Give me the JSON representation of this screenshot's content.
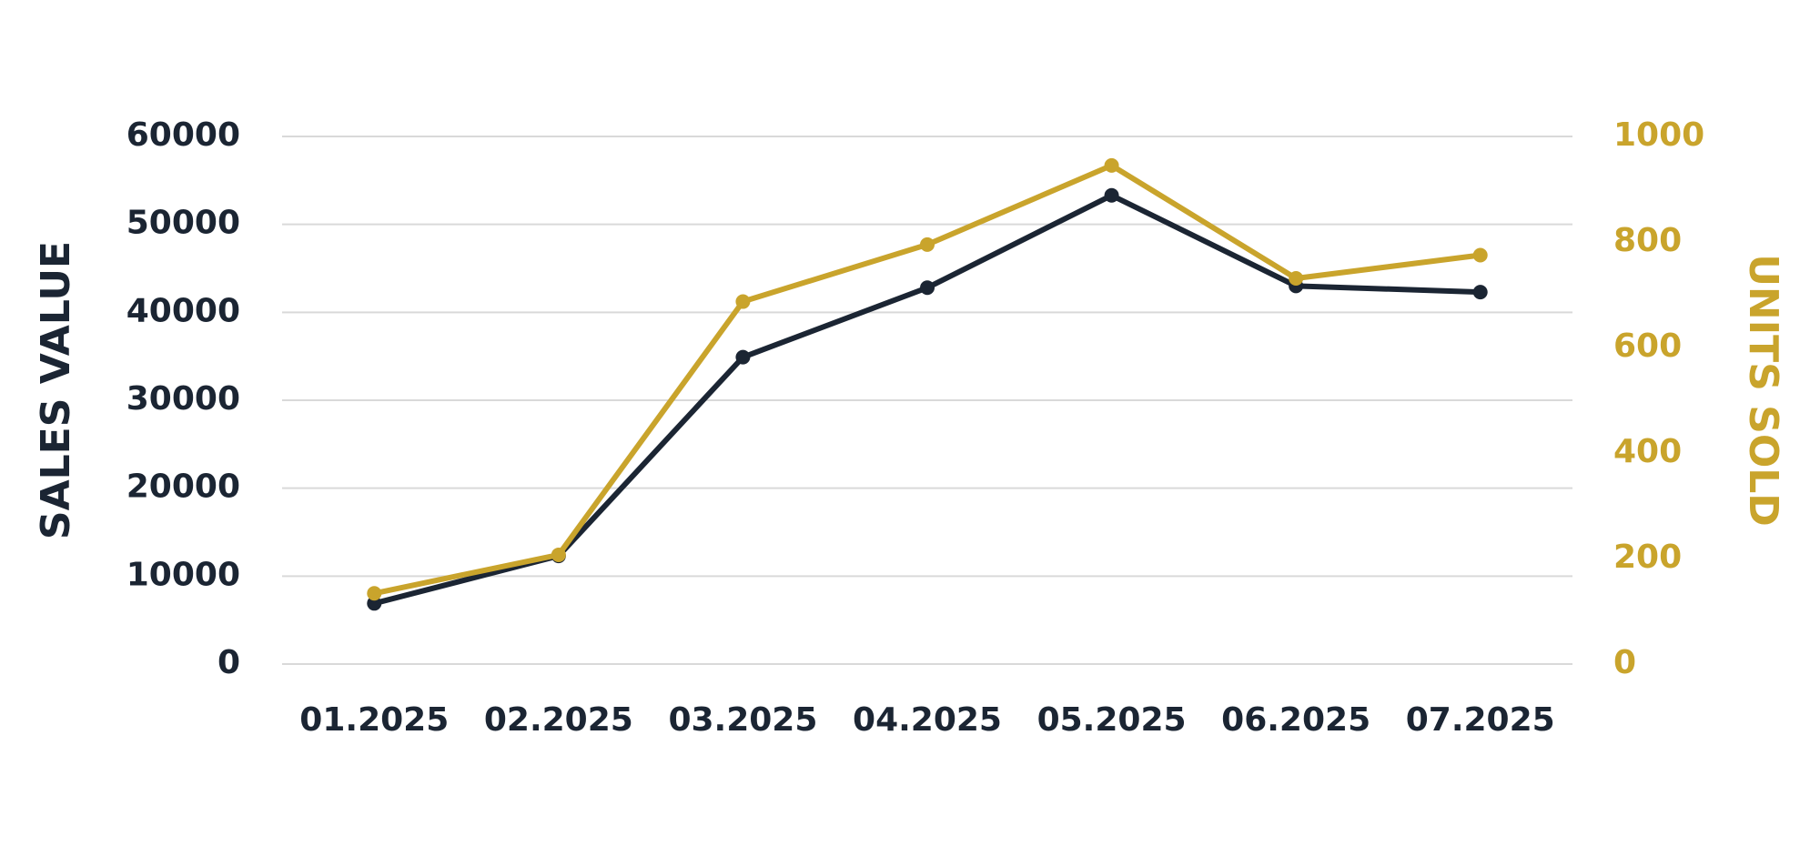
{
  "chart_data": {
    "type": "line",
    "ylabel": "SALES VALUE",
    "y2label": "UNITS SOLD",
    "categories": [
      "01.2025",
      "02.2025",
      "03.2025",
      "04.2025",
      "05.2025",
      "06.2025",
      "07.2025"
    ],
    "series": [
      {
        "color": "#1b2533",
        "values": [
          6900,
          12300,
          34900,
          42800,
          53300,
          43000,
          42300
        ]
      },
      {
        "color": "#c9a42c",
        "axis": "y2",
        "values": [
          134,
          207,
          687,
          795,
          945,
          731,
          775
        ]
      }
    ],
    "ylim": [
      0,
      60000
    ],
    "yticks": [
      0,
      10000,
      20000,
      30000,
      40000,
      50000,
      60000
    ],
    "y2lim": [
      0,
      1000
    ],
    "y2ticks": [
      0,
      200,
      400,
      600,
      800,
      1000
    ],
    "grid": true
  }
}
